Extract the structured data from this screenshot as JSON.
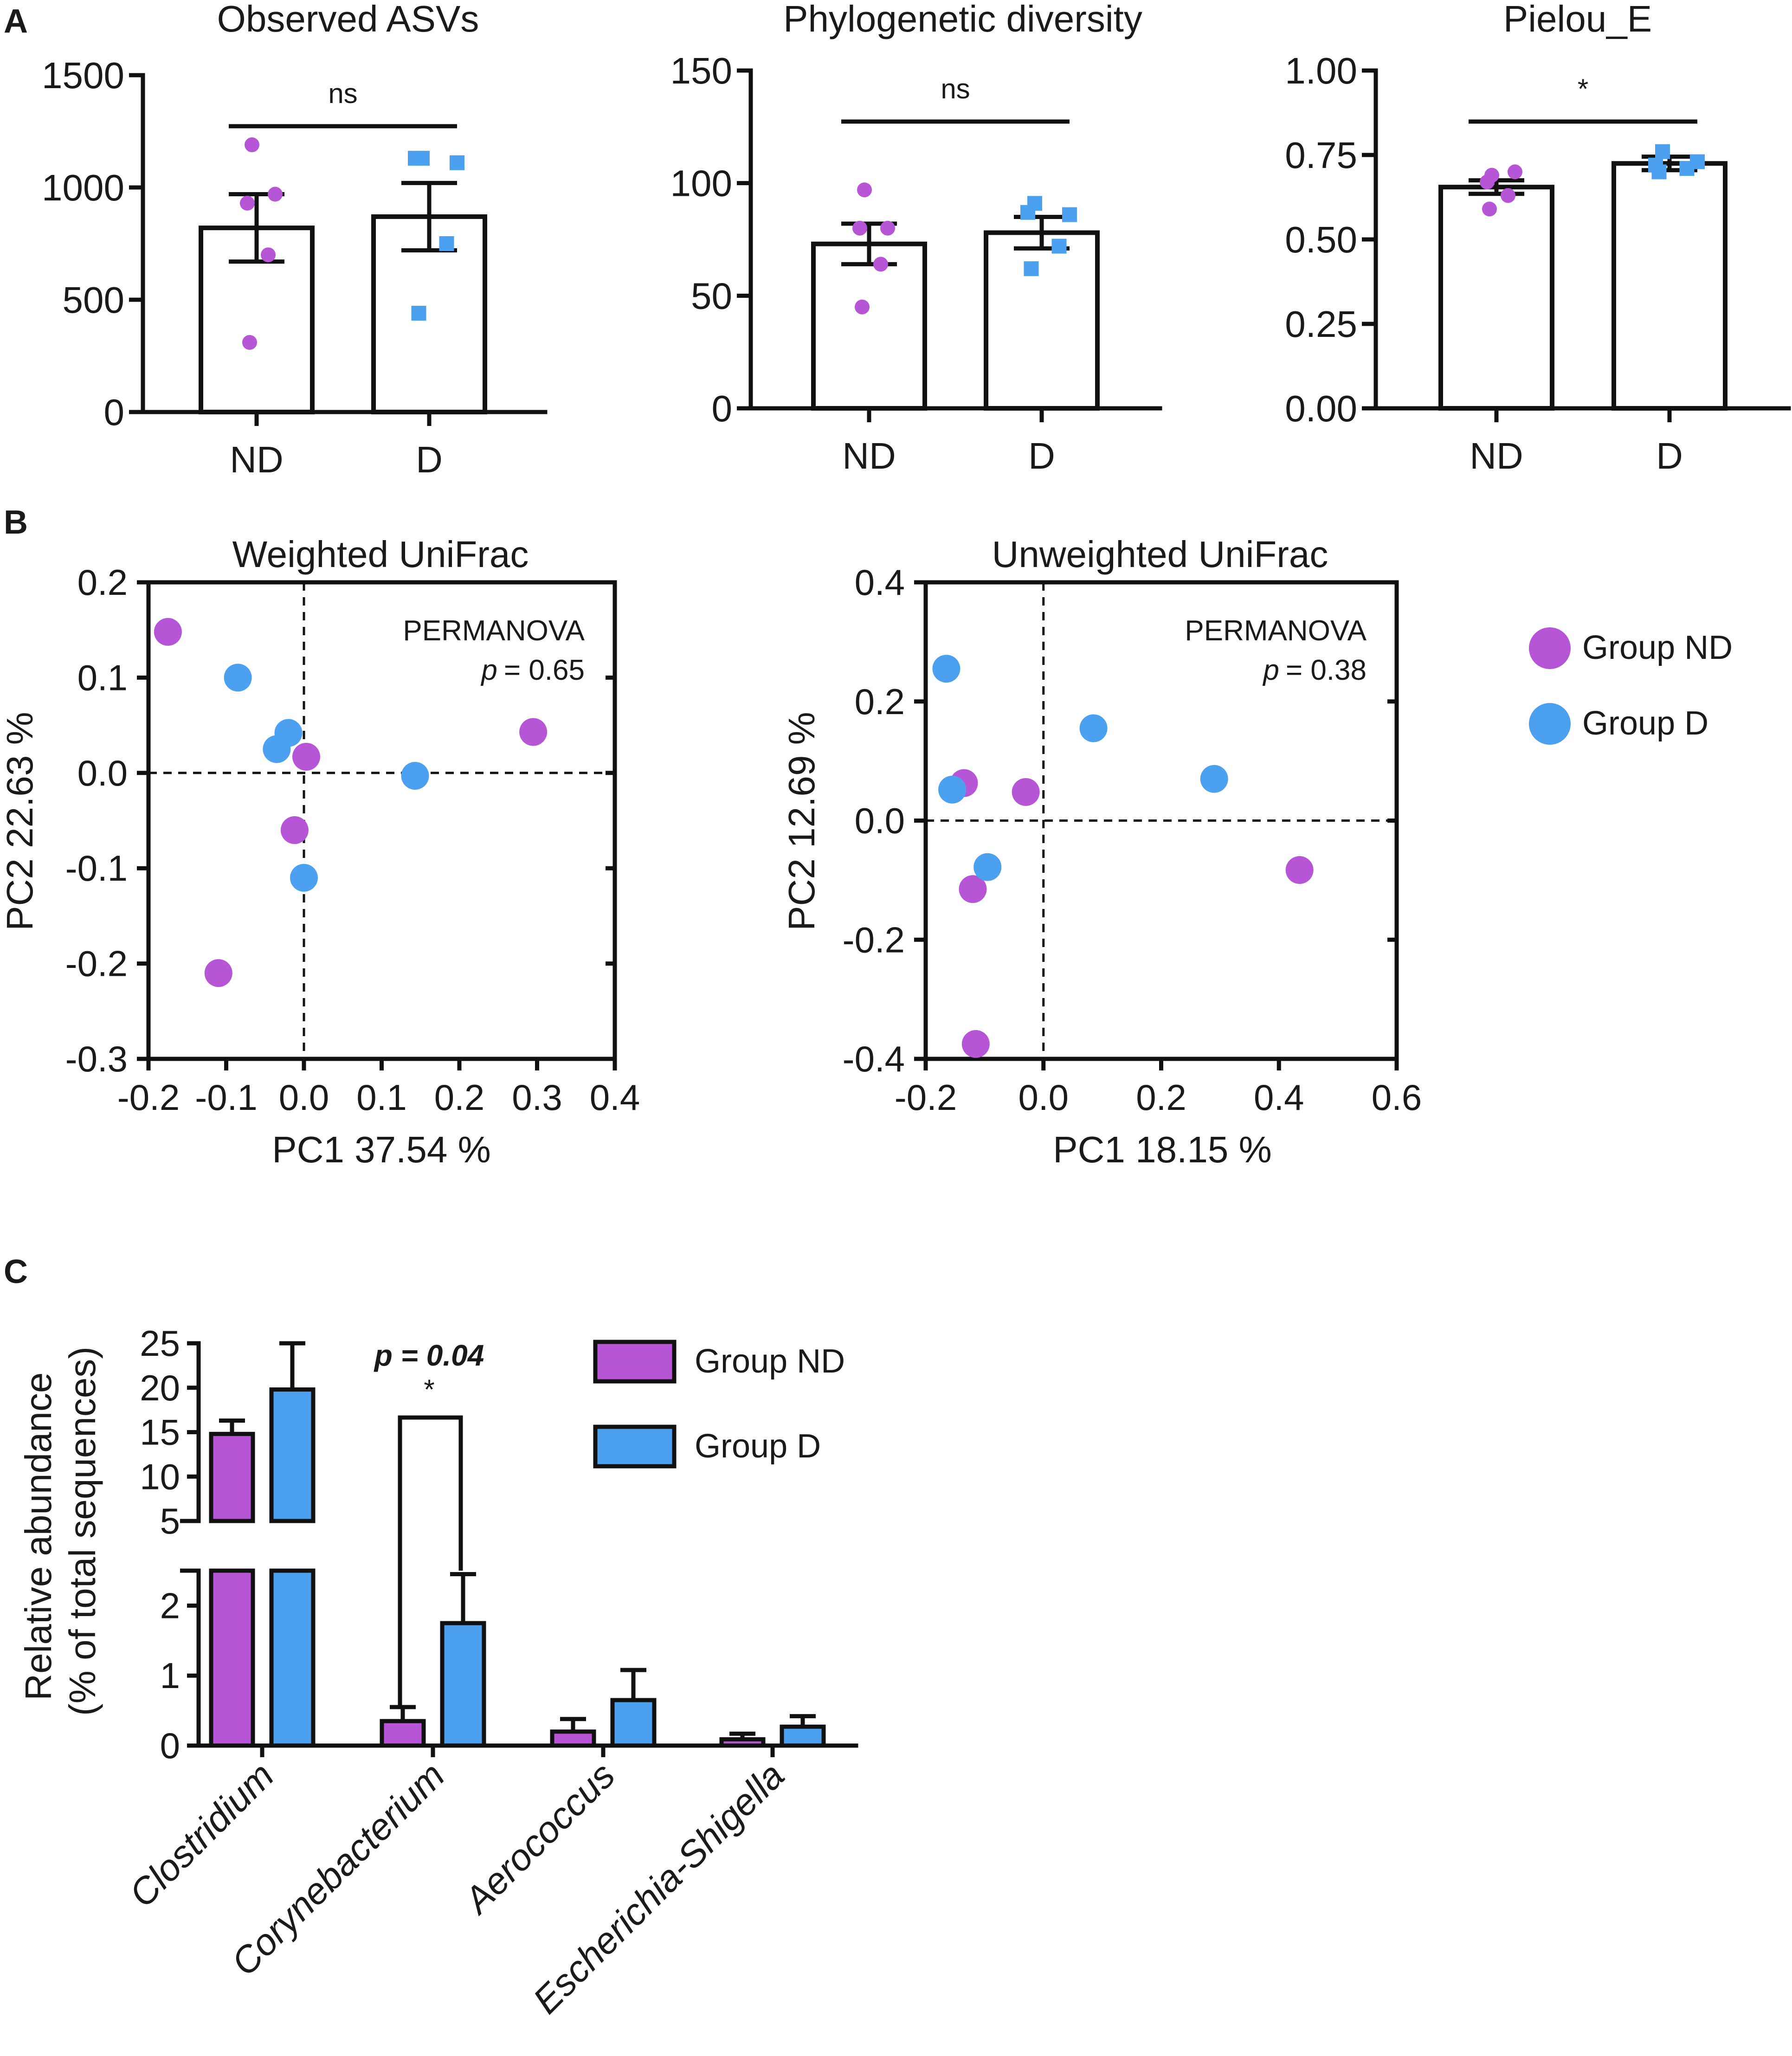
{
  "panel_labels": {
    "a": "A",
    "b": "B",
    "c": "C"
  },
  "colors": {
    "nd": "#b656d6",
    "d": "#4ba0f0",
    "axis": "#111111"
  },
  "chart_data": [
    {
      "id": "observed",
      "type": "bar",
      "title": "Observed ASVs",
      "categories": [
        "ND",
        "D"
      ],
      "values": [
        820,
        870
      ],
      "errors": [
        150,
        150
      ],
      "ylim": [
        0,
        1500
      ],
      "yticks": [
        0,
        500,
        1000,
        1500
      ],
      "ytick_labels": [
        "0",
        "500",
        "1000",
        "1500"
      ],
      "significance": "ns",
      "points": {
        "ND": [
          1190,
          970,
          930,
          700,
          310
        ],
        "D": [
          1130,
          1110,
          1130,
          750,
          440
        ]
      }
    },
    {
      "id": "phylo",
      "type": "bar",
      "title": "Phylogenetic diversity",
      "categories": [
        "ND",
        "D"
      ],
      "values": [
        73,
        78
      ],
      "errors": [
        9,
        7
      ],
      "ylim": [
        0,
        150
      ],
      "yticks": [
        0,
        50,
        100,
        150
      ],
      "ytick_labels": [
        "0",
        "50",
        "100",
        "150"
      ],
      "significance": "ns",
      "points": {
        "ND": [
          97,
          80,
          80,
          64,
          45
        ],
        "D": [
          91,
          86,
          87,
          72,
          62
        ]
      }
    },
    {
      "id": "pielou",
      "type": "bar",
      "title": "Pielou_E",
      "categories": [
        "ND",
        "D"
      ],
      "values": [
        0.655,
        0.725
      ],
      "errors": [
        0.02,
        0.02
      ],
      "ylim": [
        0,
        1.0
      ],
      "yticks": [
        0,
        0.25,
        0.5,
        0.75,
        1.0
      ],
      "ytick_labels": [
        "0.00",
        "0.25",
        "0.50",
        "0.75",
        "1.00"
      ],
      "significance": "*",
      "points": {
        "ND": [
          0.69,
          0.7,
          0.67,
          0.63,
          0.59
        ],
        "D": [
          0.76,
          0.73,
          0.72,
          0.71,
          0.7
        ]
      }
    },
    {
      "id": "weighted",
      "type": "scatter",
      "title": "Weighted UniFrac",
      "xlabel": "PC1 37.54 %",
      "ylabel": "PC2 22.63 %",
      "xlim": [
        -0.2,
        0.4
      ],
      "ylim": [
        -0.3,
        0.2
      ],
      "xticks": [
        -0.2,
        -0.1,
        0.0,
        0.1,
        0.2,
        0.3,
        0.4
      ],
      "xtick_labels": [
        "-0.2",
        "-0.1",
        "0.0",
        "0.1",
        "0.2",
        "0.3",
        "0.4"
      ],
      "yticks": [
        -0.3,
        -0.2,
        -0.1,
        0.0,
        0.1,
        0.2
      ],
      "ytick_labels": [
        "-0.3",
        "-0.2",
        "-0.1",
        "0.0",
        "0.1",
        "0.2"
      ],
      "annotation": {
        "test": "PERMANOVA",
        "p_label": "p",
        "p_value": "= 0.65"
      },
      "series": [
        {
          "name": "Group ND",
          "x": [
            -0.175,
            0.295,
            0.003,
            -0.012,
            -0.11
          ],
          "y": [
            0.148,
            0.043,
            0.017,
            -0.06,
            -0.21
          ]
        },
        {
          "name": "Group D",
          "x": [
            -0.085,
            -0.02,
            -0.035,
            0.143,
            0.0
          ],
          "y": [
            0.1,
            0.042,
            0.025,
            -0.003,
            -0.11
          ]
        }
      ]
    },
    {
      "id": "unweighted",
      "type": "scatter",
      "title": "Unweighted UniFrac",
      "xlabel": "PC1 18.15 %",
      "ylabel": "PC2 12.69 %",
      "xlim": [
        -0.2,
        0.6
      ],
      "ylim": [
        -0.4,
        0.4
      ],
      "xticks": [
        -0.2,
        0.0,
        0.2,
        0.4,
        0.6
      ],
      "xtick_labels": [
        "-0.2",
        "0.0",
        "0.2",
        "0.4",
        "0.6"
      ],
      "yticks": [
        -0.4,
        -0.2,
        0.0,
        0.2,
        0.4
      ],
      "ytick_labels": [
        "-0.4",
        "-0.2",
        "0.0",
        "0.2",
        "0.4"
      ],
      "annotation": {
        "test": "PERMANOVA",
        "p_label": "p",
        "p_value": "= 0.38"
      },
      "legend": [
        "Group ND",
        "Group D"
      ],
      "series": [
        {
          "name": "Group ND",
          "x": [
            -0.135,
            -0.03,
            -0.12,
            0.435,
            -0.115
          ],
          "y": [
            0.063,
            0.048,
            -0.115,
            -0.083,
            -0.375
          ]
        },
        {
          "name": "Group D",
          "x": [
            -0.165,
            -0.155,
            0.085,
            0.29,
            -0.095
          ],
          "y": [
            0.255,
            0.052,
            0.155,
            0.07,
            -0.078
          ]
        }
      ]
    },
    {
      "id": "abundance",
      "type": "bar",
      "ylabel_line1": "Relative abundance",
      "ylabel_line2": "(% of total sequences)",
      "categories": [
        "Clostridium",
        "Corynebacterium",
        "Aerococcus",
        "Escherichia-Shigella"
      ],
      "series": [
        {
          "name": "Group ND",
          "values": [
            14.8,
            0.35,
            0.2,
            0.09
          ],
          "errors": [
            1.5,
            0.2,
            0.18,
            0.08
          ]
        },
        {
          "name": "Group D",
          "values": [
            19.8,
            1.75,
            0.65,
            0.27
          ],
          "errors": [
            5.2,
            0.7,
            0.43,
            0.15
          ]
        }
      ],
      "broken_axis": {
        "lower_range": [
          0,
          2.5
        ],
        "upper_range": [
          5,
          25
        ]
      },
      "yticks_lower": [
        0,
        1,
        2
      ],
      "ytick_labels_lower": [
        "0",
        "1",
        "2"
      ],
      "yticks_upper": [
        5,
        10,
        15,
        20,
        25
      ],
      "ytick_labels_upper": [
        "5",
        "10",
        "15",
        "20",
        "25"
      ],
      "significance": {
        "label": "p = 0.04",
        "star": "*"
      }
    }
  ]
}
